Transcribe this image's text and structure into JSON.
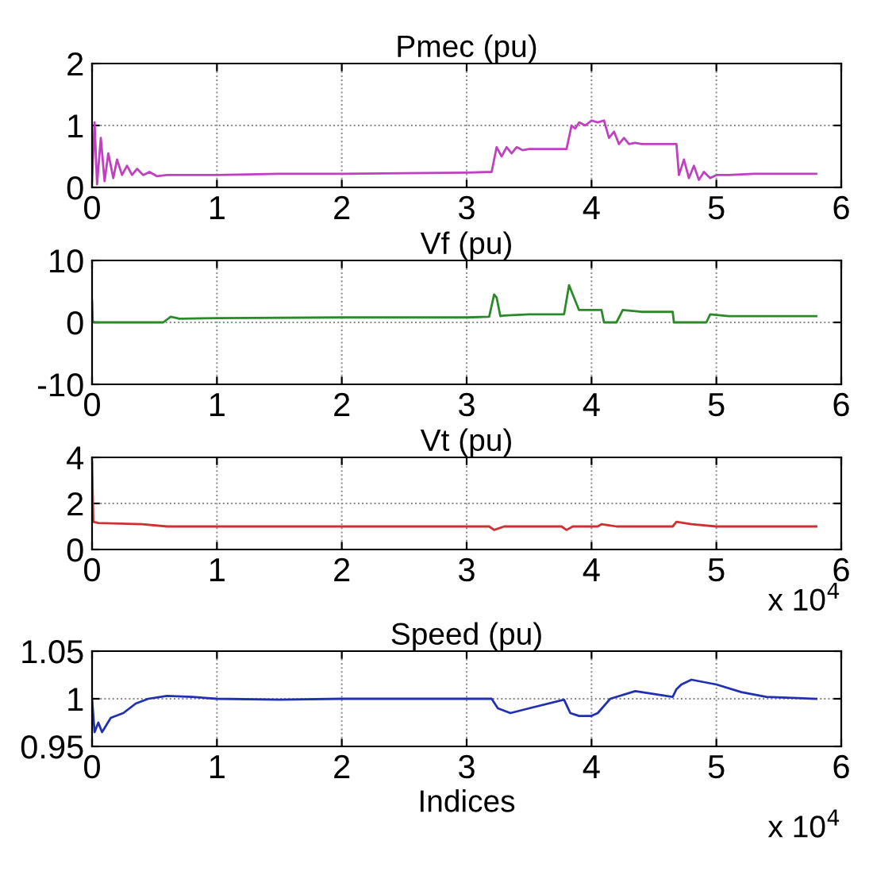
{
  "chart_data": [
    {
      "type": "line",
      "title": "Pmec (pu)",
      "xlim": [
        0,
        6
      ],
      "xticks": [
        0,
        1,
        2,
        3,
        4,
        5,
        6
      ],
      "ylim": [
        0,
        2
      ],
      "yticks": [
        0,
        1,
        2
      ],
      "grid": true,
      "series": [
        {
          "color": "#c040c0",
          "x": [
            0,
            0.02,
            0.04,
            0.07,
            0.1,
            0.13,
            0.17,
            0.2,
            0.24,
            0.28,
            0.32,
            0.36,
            0.41,
            0.46,
            0.52,
            0.6,
            1.0,
            1.5,
            2.0,
            2.5,
            3.0,
            3.2,
            3.24,
            3.28,
            3.32,
            3.36,
            3.4,
            3.45,
            3.5,
            3.8,
            3.84,
            3.87,
            3.9,
            3.95,
            4.0,
            4.05,
            4.1,
            4.14,
            4.18,
            4.22,
            4.26,
            4.3,
            4.35,
            4.4,
            4.68,
            4.7,
            4.74,
            4.78,
            4.82,
            4.86,
            4.9,
            4.95,
            5.0,
            5.1,
            5.3,
            5.8
          ],
          "values": [
            0.1,
            1.05,
            0.05,
            0.8,
            0.1,
            0.55,
            0.15,
            0.45,
            0.2,
            0.35,
            0.2,
            0.3,
            0.2,
            0.25,
            0.18,
            0.2,
            0.2,
            0.22,
            0.22,
            0.23,
            0.24,
            0.25,
            0.65,
            0.5,
            0.65,
            0.55,
            0.65,
            0.6,
            0.62,
            0.62,
            1.0,
            0.95,
            1.05,
            1.0,
            1.08,
            1.05,
            1.08,
            0.8,
            0.9,
            0.7,
            0.8,
            0.7,
            0.72,
            0.7,
            0.7,
            0.2,
            0.45,
            0.15,
            0.35,
            0.12,
            0.25,
            0.15,
            0.2,
            0.2,
            0.22,
            0.22
          ]
        }
      ]
    },
    {
      "type": "line",
      "title": "Vf (pu)",
      "xlim": [
        0,
        6
      ],
      "xticks": [
        0,
        1,
        2,
        3,
        4,
        5,
        6
      ],
      "ylim": [
        -10,
        10
      ],
      "yticks": [
        -10,
        0,
        10
      ],
      "grid": true,
      "series": [
        {
          "color": "#2a8a2a",
          "x": [
            0,
            0.005,
            0.02,
            0.57,
            0.63,
            0.7,
            1.0,
            2.0,
            3.0,
            3.18,
            3.22,
            3.24,
            3.27,
            3.3,
            3.5,
            3.78,
            3.82,
            3.85,
            3.9,
            4.08,
            4.1,
            4.2,
            4.25,
            4.4,
            4.65,
            4.66,
            4.92,
            4.95,
            5.1,
            5.8
          ],
          "values": [
            3.5,
            0.2,
            0,
            0,
            0.9,
            0.6,
            0.7,
            0.8,
            0.8,
            0.9,
            4.5,
            4.0,
            1.0,
            1.1,
            1.3,
            1.3,
            6.0,
            4.5,
            2.0,
            2.0,
            0,
            0,
            2.0,
            1.7,
            1.7,
            0,
            0,
            1.3,
            1.0,
            1.0
          ]
        }
      ]
    },
    {
      "type": "line",
      "title": "Vt (pu)",
      "xlim": [
        0,
        6
      ],
      "xticks": [
        0,
        1,
        2,
        3,
        4,
        5,
        6
      ],
      "ylim": [
        0,
        4
      ],
      "yticks": [
        0,
        2,
        4
      ],
      "grid": true,
      "annotations": [
        "x 10$^{4}$"
      ],
      "series": [
        {
          "color": "#d03030",
          "x": [
            0,
            0.01,
            0.05,
            0.4,
            0.6,
            1.0,
            3.18,
            3.22,
            3.3,
            3.76,
            3.8,
            3.85,
            4.05,
            4.08,
            4.2,
            4.65,
            4.68,
            4.8,
            5.0,
            5.8
          ],
          "values": [
            3.8,
            1.2,
            1.15,
            1.1,
            1.0,
            1.0,
            1.0,
            0.85,
            1.0,
            1.0,
            0.85,
            1.0,
            1.0,
            1.1,
            1.0,
            1.0,
            1.2,
            1.1,
            1.0,
            1.0
          ]
        }
      ]
    },
    {
      "type": "line",
      "title": "Speed (pu)",
      "xlabel": "Indices",
      "xlim": [
        0,
        6
      ],
      "xticks": [
        0,
        1,
        2,
        3,
        4,
        5,
        6
      ],
      "ylim": [
        0.95,
        1.05
      ],
      "yticks": [
        0.95,
        1,
        1.05
      ],
      "grid": true,
      "annotations": [
        "x 10$^{4}$"
      ],
      "series": [
        {
          "color": "#2030b0",
          "x": [
            0,
            0.02,
            0.05,
            0.08,
            0.15,
            0.25,
            0.35,
            0.45,
            0.6,
            0.8,
            1.0,
            1.5,
            2.0,
            2.5,
            3.0,
            3.2,
            3.25,
            3.35,
            3.5,
            3.78,
            3.83,
            3.9,
            4.0,
            4.05,
            4.15,
            4.35,
            4.65,
            4.68,
            4.72,
            4.8,
            5.0,
            5.2,
            5.4,
            5.8
          ],
          "values": [
            1.0,
            0.965,
            0.975,
            0.965,
            0.98,
            0.985,
            0.995,
            1.0,
            1.003,
            1.002,
            1.0,
            0.999,
            1.0,
            1.0,
            1.0,
            1.0,
            0.99,
            0.985,
            0.99,
            0.999,
            0.985,
            0.982,
            0.982,
            0.985,
            1.0,
            1.008,
            1.002,
            1.01,
            1.015,
            1.02,
            1.015,
            1.007,
            1.002,
            1.0
          ]
        }
      ]
    }
  ]
}
